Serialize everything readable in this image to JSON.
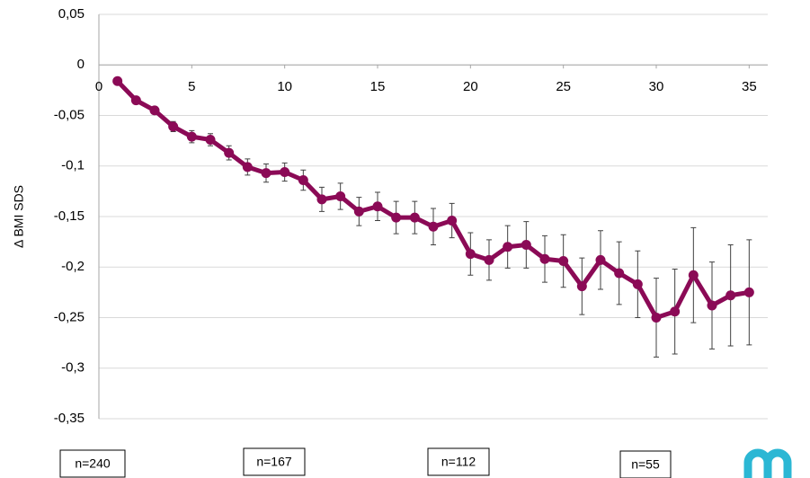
{
  "chart_data": {
    "type": "line",
    "y_label": "Δ BMI SDS",
    "x": [
      1,
      2,
      3,
      4,
      5,
      6,
      7,
      8,
      9,
      10,
      11,
      12,
      13,
      14,
      15,
      16,
      17,
      18,
      19,
      20,
      21,
      22,
      23,
      24,
      25,
      26,
      27,
      28,
      29,
      30,
      31,
      32,
      33,
      34,
      35
    ],
    "series": [
      {
        "name": "Δ BMI SDS",
        "color": "#8b0a56",
        "values": [
          -0.016,
          -0.035,
          -0.045,
          -0.061,
          -0.071,
          -0.074,
          -0.087,
          -0.101,
          -0.107,
          -0.106,
          -0.114,
          -0.133,
          -0.13,
          -0.145,
          -0.14,
          -0.151,
          -0.151,
          -0.16,
          -0.154,
          -0.187,
          -0.193,
          -0.18,
          -0.178,
          -0.192,
          -0.194,
          -0.219,
          -0.193,
          -0.206,
          -0.217,
          -0.25,
          -0.244,
          -0.208,
          -0.238,
          -0.228,
          -0.225
        ],
        "errors": [
          0.001,
          0.002,
          0.003,
          0.005,
          0.006,
          0.006,
          0.007,
          0.008,
          0.009,
          0.009,
          0.01,
          0.012,
          0.013,
          0.014,
          0.014,
          0.016,
          0.016,
          0.018,
          0.017,
          0.021,
          0.02,
          0.021,
          0.023,
          0.023,
          0.026,
          0.028,
          0.029,
          0.031,
          0.033,
          0.039,
          0.042,
          0.047,
          0.043,
          0.05,
          0.052
        ]
      }
    ],
    "xlim": [
      0,
      36
    ],
    "xticks": [
      0,
      5,
      10,
      15,
      20,
      25,
      30,
      35
    ],
    "ylim": [
      -0.35,
      0.05
    ],
    "yticks": [
      {
        "value": 0.05,
        "label": "0,05"
      },
      0,
      {
        "value": -0.05,
        "label": "-0,05"
      },
      {
        "value": -0.1,
        "label": "-0,1"
      },
      {
        "value": -0.15,
        "label": "-0,15"
      },
      {
        "value": -0.2,
        "label": "-0,2"
      },
      {
        "value": -0.25,
        "label": "-0,25"
      },
      {
        "value": -0.3,
        "label": "-0,3"
      },
      {
        "value": -0.35,
        "label": "-0,35"
      }
    ],
    "grid": true,
    "annotations": [
      "n=240",
      "n=167",
      "n=112",
      "n=55"
    ]
  }
}
